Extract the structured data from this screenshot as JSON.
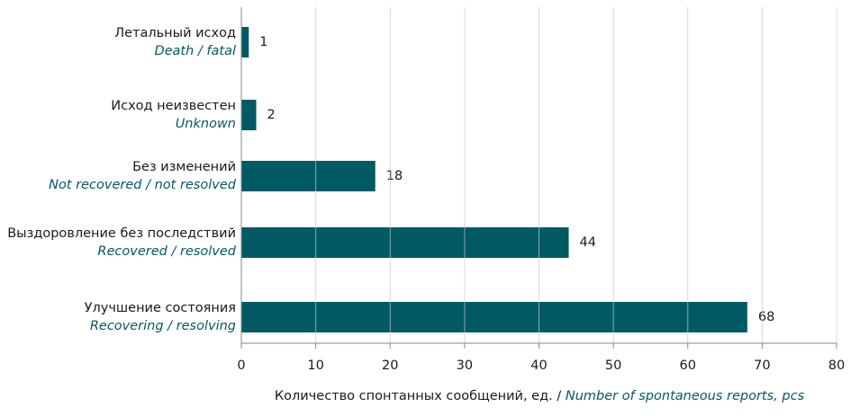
{
  "chart_data": {
    "type": "bar",
    "orientation": "horizontal",
    "categories": [
      "Летальный исход",
      "Исход неизвестен",
      "Без изменений",
      "Выздоровление без последствий",
      "Улучшение состояния"
    ],
    "category_translations": [
      "Death / fatal",
      "Unknown",
      "Not recovered / not resolved",
      "Recovered / resolved",
      "Recovering / resolving"
    ],
    "values": [
      1,
      2,
      18,
      44,
      68
    ],
    "color": "#005a64",
    "xlim": [
      0,
      80
    ],
    "xticks": [
      0,
      10,
      20,
      30,
      40,
      50,
      60,
      70,
      80
    ],
    "grid": true,
    "xlabel": "Количество спонтанных сообщений, ед. /",
    "xlabel_translation": "Number of spontaneous reports, pcs"
  }
}
